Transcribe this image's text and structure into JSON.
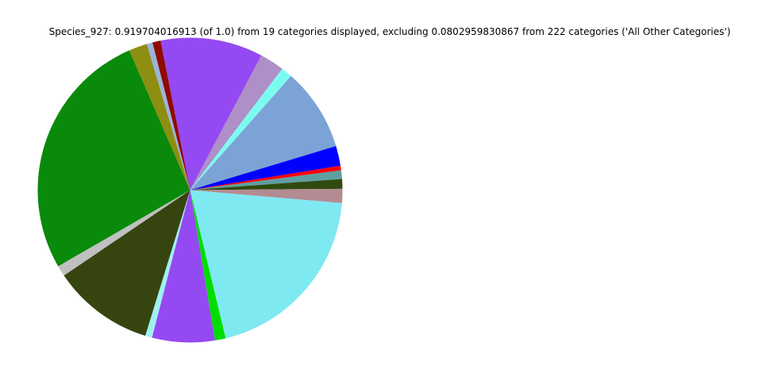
{
  "page": {
    "background_color": "#ffffff"
  },
  "chart": {
    "title": "Species_927: 0.919704016913 (of 1.0) from 19 categories displayed, excluding 0.0802959830867 from 222 categories ('All Other Categories')",
    "species_label": "Species_927",
    "displayed_fraction": "0.919704016913",
    "displayed_of_total": "1.0",
    "categories_displayed": "19",
    "excluded_fraction": "0.0802959830867",
    "excluded_category_count": "222",
    "excluded_group_label": "All Other Categories"
  },
  "chart_data": {
    "type": "pie",
    "title": "Species_927: 0.919704016913 (of 1.0) from 19 categories displayed, excluding 0.0802959830867 from 222 categories ('All Other Categories')",
    "legend": "none",
    "grid": "off",
    "background": "#ffffff",
    "center": {
      "x": 239.5,
      "y": 239.5
    },
    "radius": 192,
    "start_angle_deg": 101.2,
    "direction": "clockwise",
    "displayed_total_value": 0.919704016913,
    "slices": [
      {
        "name": "violet-top",
        "color": "#9549f2",
        "angle_deg": 39.1,
        "fraction_of_circle": 0.1086,
        "estimated_value": 0.0999
      },
      {
        "name": "plum",
        "color": "#ae8fc8",
        "angle_deg": 9.3,
        "fraction_of_circle": 0.0258,
        "estimated_value": 0.0238
      },
      {
        "name": "aqua-sliver",
        "color": "#7cfcf0",
        "angle_deg": 4.3,
        "fraction_of_circle": 0.0119,
        "estimated_value": 0.011
      },
      {
        "name": "steel-blue",
        "color": "#7ba3d6",
        "angle_deg": 31.7,
        "fraction_of_circle": 0.0881,
        "estimated_value": 0.081
      },
      {
        "name": "blue",
        "color": "#0000ff",
        "angle_deg": 7.6,
        "fraction_of_circle": 0.0211,
        "estimated_value": 0.0194
      },
      {
        "name": "red-sliver",
        "color": "#ff0000",
        "angle_deg": 1.7,
        "fraction_of_circle": 0.0047,
        "estimated_value": 0.0043
      },
      {
        "name": "cadet-teal",
        "color": "#5f9ea0",
        "angle_deg": 3.3,
        "fraction_of_circle": 0.0092,
        "estimated_value": 0.0084
      },
      {
        "name": "dark-olive-thin",
        "color": "#2f4a10",
        "angle_deg": 3.7,
        "fraction_of_circle": 0.0103,
        "estimated_value": 0.0095
      },
      {
        "name": "rosy-brown",
        "color": "#b38b92",
        "angle_deg": 5.4,
        "fraction_of_circle": 0.015,
        "estimated_value": 0.0138
      },
      {
        "name": "pale-cyan-large",
        "color": "#7fe9f2",
        "angle_deg": 71.6,
        "fraction_of_circle": 0.1989,
        "estimated_value": 0.1829
      },
      {
        "name": "lime",
        "color": "#00dd00",
        "angle_deg": 4.1,
        "fraction_of_circle": 0.0114,
        "estimated_value": 0.0105
      },
      {
        "name": "violet-lower",
        "color": "#9549f2",
        "angle_deg": 23.9,
        "fraction_of_circle": 0.0664,
        "estimated_value": 0.0611
      },
      {
        "name": "pale-cyan-sliver",
        "color": "#9ff0f0",
        "angle_deg": 2.6,
        "fraction_of_circle": 0.0072,
        "estimated_value": 0.0066
      },
      {
        "name": "dark-olive-large",
        "color": "#364510",
        "angle_deg": 38.8,
        "fraction_of_circle": 0.1078,
        "estimated_value": 0.0991
      },
      {
        "name": "silver-sliver",
        "color": "#c0c0c0",
        "angle_deg": 4.1,
        "fraction_of_circle": 0.0114,
        "estimated_value": 0.0105
      },
      {
        "name": "green-large",
        "color": "#0a8a0a",
        "angle_deg": 96.5,
        "fraction_of_circle": 0.2681,
        "estimated_value": 0.2466
      },
      {
        "name": "olive-yellow",
        "color": "#8e8e12",
        "angle_deg": 7.0,
        "fraction_of_circle": 0.0194,
        "estimated_value": 0.0179
      },
      {
        "name": "light-blue-sliver",
        "color": "#9ab4dc",
        "angle_deg": 2.2,
        "fraction_of_circle": 0.0061,
        "estimated_value": 0.0056
      },
      {
        "name": "dark-red-sliver",
        "color": "#8e0a02",
        "angle_deg": 3.1,
        "fraction_of_circle": 0.0086,
        "estimated_value": 0.0079
      }
    ]
  }
}
